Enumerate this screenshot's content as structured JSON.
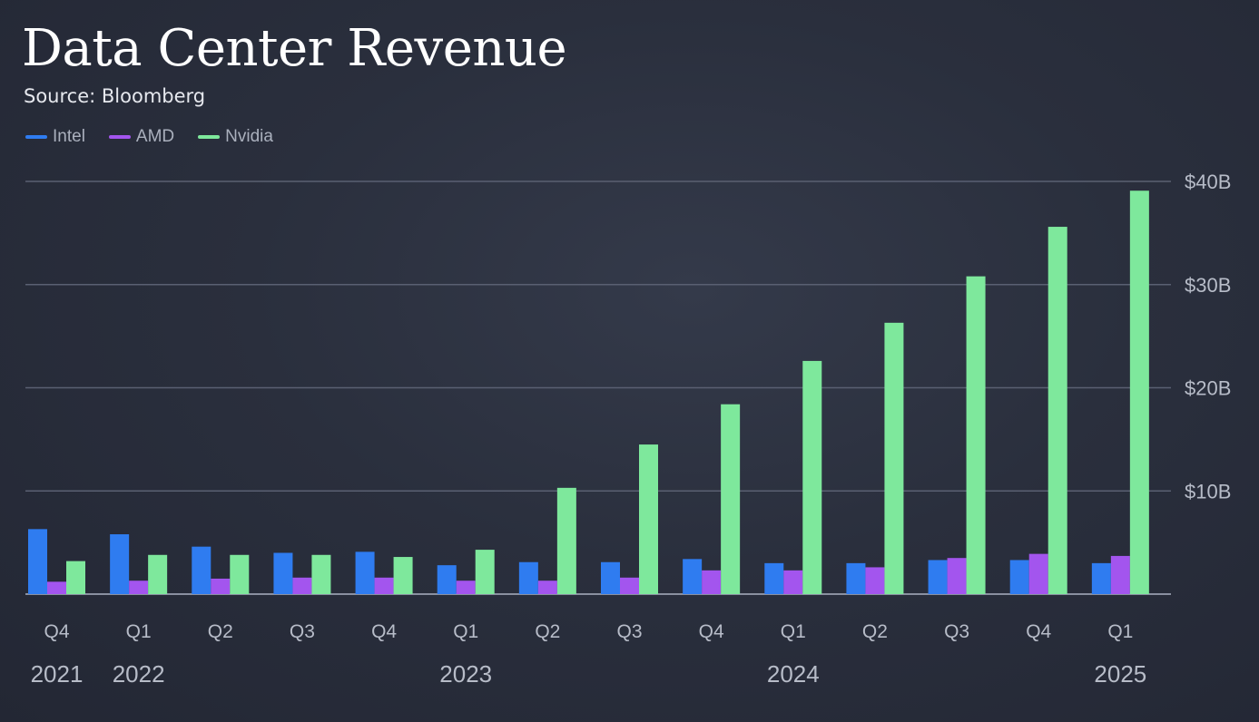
{
  "chart_data": {
    "type": "bar",
    "title": "Data Center Revenue",
    "subtitle": "Source: Bloomberg",
    "xlabel": "",
    "ylabel": "",
    "ylim": [
      0,
      40
    ],
    "yticks": [
      {
        "value": 10,
        "label": "$10B"
      },
      {
        "value": 20,
        "label": "$20B"
      },
      {
        "value": 30,
        "label": "$30B"
      },
      {
        "value": 40,
        "label": "$40B"
      }
    ],
    "grid": true,
    "legend_position": "top-left",
    "categories": [
      "Q4",
      "Q1",
      "Q2",
      "Q3",
      "Q4",
      "Q1",
      "Q2",
      "Q3",
      "Q4",
      "Q1",
      "Q2",
      "Q3",
      "Q4",
      "Q1"
    ],
    "year_labels": [
      "2021",
      "2022",
      "",
      "",
      "",
      "2023",
      "",
      "",
      "",
      "2024",
      "",
      "",
      "",
      "2025"
    ],
    "series": [
      {
        "name": "Intel",
        "color": "#2f7cf0",
        "values": [
          6.3,
          5.8,
          4.6,
          4.0,
          4.1,
          2.8,
          3.1,
          3.1,
          3.4,
          3.0,
          3.0,
          3.3,
          3.3,
          3.0
        ]
      },
      {
        "name": "AMD",
        "color": "#a355ee",
        "values": [
          1.2,
          1.3,
          1.5,
          1.6,
          1.6,
          1.3,
          1.3,
          1.6,
          2.3,
          2.3,
          2.6,
          3.5,
          3.9,
          3.7
        ]
      },
      {
        "name": "Nvidia",
        "color": "#7ee89c",
        "values": [
          3.2,
          3.8,
          3.8,
          3.8,
          3.6,
          4.3,
          10.3,
          14.5,
          18.4,
          22.6,
          26.3,
          30.8,
          35.6,
          39.1
        ]
      }
    ]
  }
}
